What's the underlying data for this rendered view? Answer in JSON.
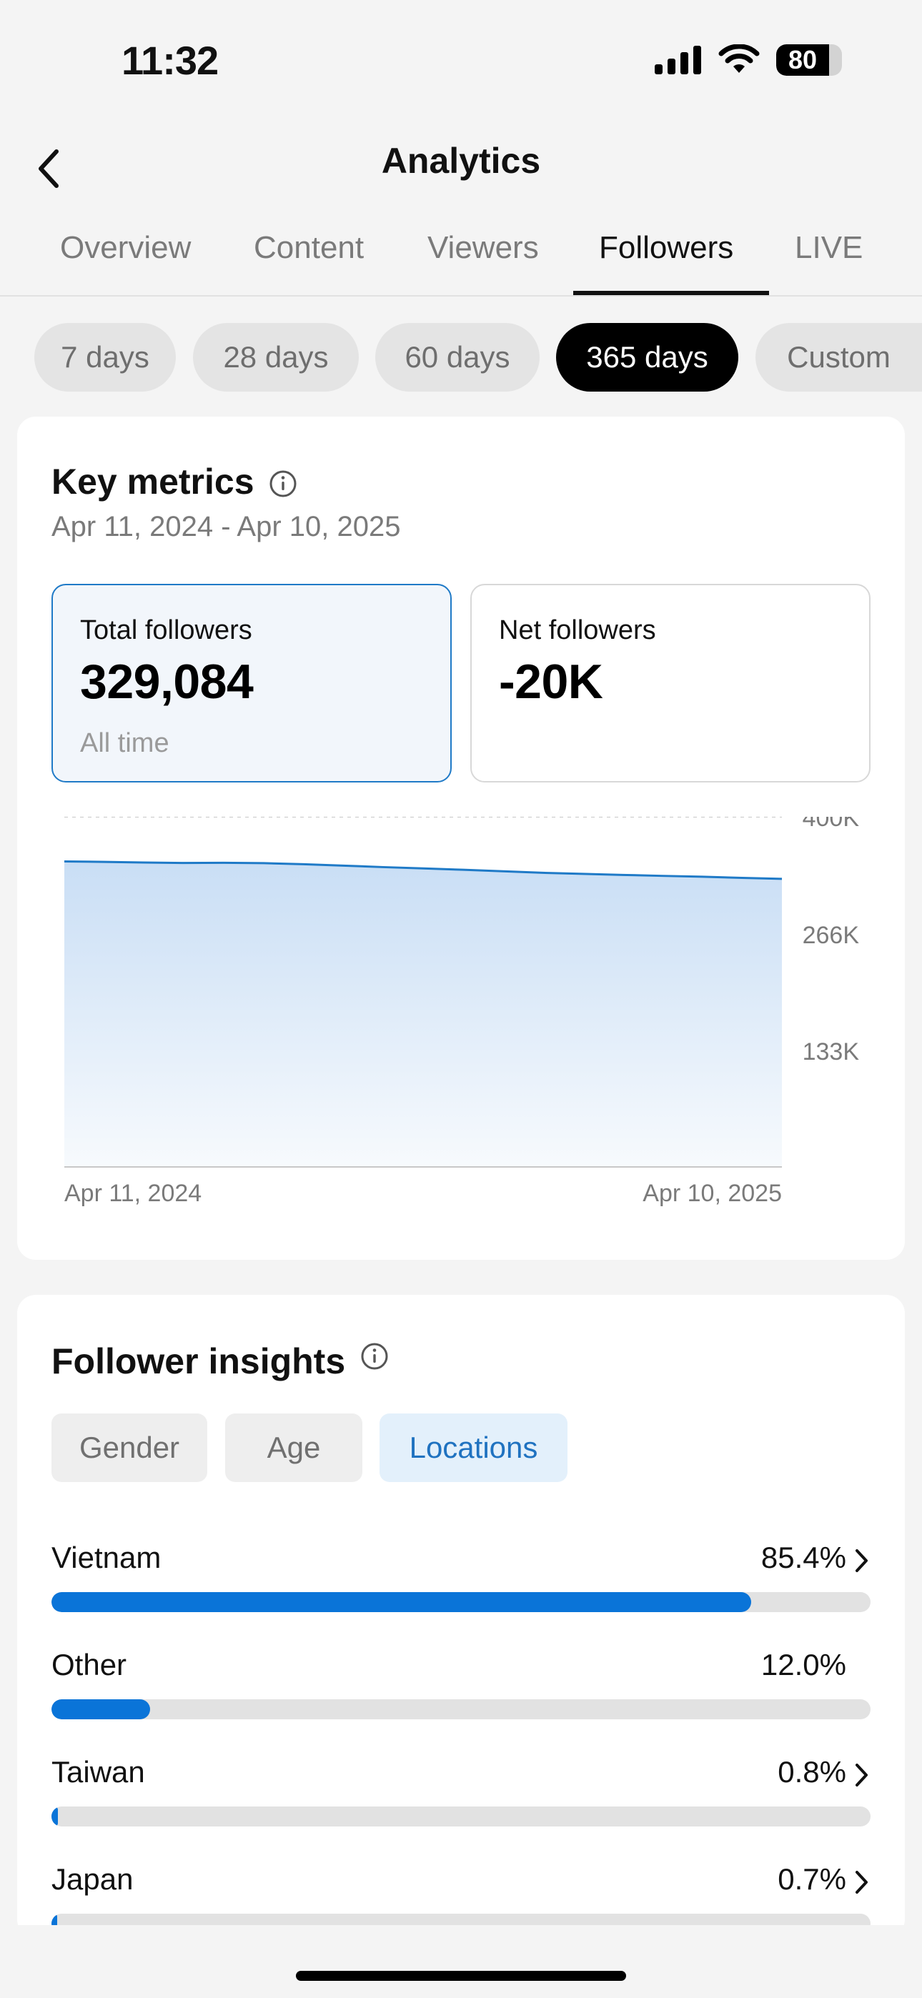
{
  "status_bar": {
    "time": "11:32",
    "battery": "80"
  },
  "header": {
    "title": "Analytics",
    "back_icon": "chevron-left-icon"
  },
  "tabs": [
    {
      "label": "Overview",
      "active": false
    },
    {
      "label": "Content",
      "active": false
    },
    {
      "label": "Viewers",
      "active": false
    },
    {
      "label": "Followers",
      "active": true
    },
    {
      "label": "LIVE",
      "active": false
    }
  ],
  "periods": [
    {
      "label": "7 days",
      "active": false
    },
    {
      "label": "28 days",
      "active": false
    },
    {
      "label": "60 days",
      "active": false
    },
    {
      "label": "365 days",
      "active": true
    },
    {
      "label": "Custom",
      "active": false
    }
  ],
  "key_metrics": {
    "title": "Key metrics",
    "date_range": "Apr 11, 2024 - Apr 10, 2025",
    "total": {
      "label": "Total followers",
      "value": "329,084",
      "sub": "All time"
    },
    "net": {
      "label": "Net followers",
      "value": "-20K"
    }
  },
  "chart_data": {
    "type": "area",
    "x_labels": [
      "Apr 11, 2024",
      "Apr 10, 2025"
    ],
    "y_ticks": [
      "400K",
      "266K",
      "133K"
    ],
    "ylim": [
      0,
      400000
    ],
    "grid": true,
    "line_color": "#1f7ac7",
    "series": [
      {
        "values": [
          349000,
          348500,
          347800,
          347200,
          347400,
          347000,
          345800,
          344200,
          342500,
          341000,
          339500,
          337800,
          336000,
          334800,
          333600,
          332500,
          331500,
          330200,
          329084
        ]
      }
    ]
  },
  "insights": {
    "title": "Follower insights",
    "segments": [
      {
        "label": "Gender",
        "active": false
      },
      {
        "label": "Age",
        "active": false
      },
      {
        "label": "Locations",
        "active": true
      }
    ],
    "locations": [
      {
        "name": "Vietnam",
        "pct": "85.4%",
        "value": 85.4,
        "chevron": true
      },
      {
        "name": "Other",
        "pct": "12.0%",
        "value": 12.0,
        "chevron": false
      },
      {
        "name": "Taiwan",
        "pct": "0.8%",
        "value": 0.8,
        "chevron": true
      },
      {
        "name": "Japan",
        "pct": "0.7%",
        "value": 0.7,
        "chevron": true
      }
    ]
  },
  "colors": {
    "accent": "#0a74d8",
    "selected_border": "#1f7ac7"
  }
}
